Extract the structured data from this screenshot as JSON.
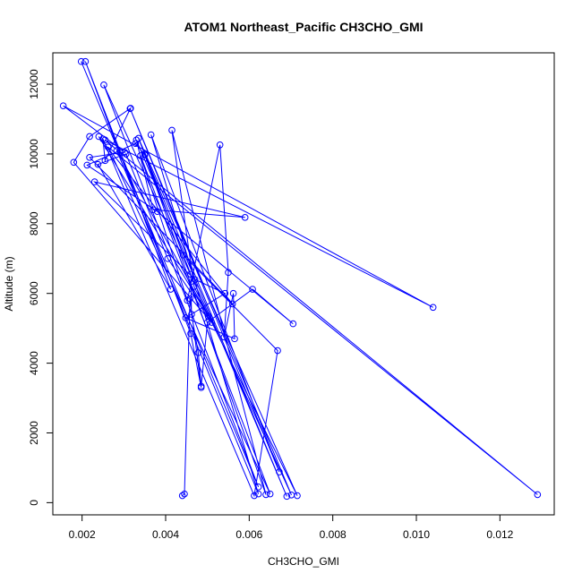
{
  "chart_data": {
    "type": "line",
    "title": "ATOM1 Northeast_Pacific CH3CHO_GMI",
    "xlabel": "CH3CHO_GMI",
    "ylabel": "Altitude (m)",
    "xlim": [
      0.0013,
      0.0133
    ],
    "ylim": [
      -350,
      12900
    ],
    "x_ticks": [
      0.002,
      0.004,
      0.006,
      0.008,
      0.01,
      0.012
    ],
    "x_tick_labels": [
      "0.002",
      "0.004",
      "0.006",
      "0.008",
      "0.010",
      "0.012"
    ],
    "y_ticks": [
      0,
      2000,
      4000,
      6000,
      8000,
      10000,
      12000
    ],
    "y_tick_labels": [
      "0",
      "2000",
      "4000",
      "6000",
      "8000",
      "10000",
      "12000"
    ],
    "grid": false,
    "legend": "none",
    "series": [
      {
        "color": "#0000ff",
        "marker": "open-circle",
        "x": [
          0.00198,
          0.00622,
          0.00252,
          0.00701,
          0.00315,
          0.00672,
          0.00365,
          0.00622,
          0.00283,
          0.00502,
          0.0024,
          0.0056,
          0.00218,
          0.00302,
          0.00155,
          0.0104,
          0.00255,
          0.0129,
          0.00262,
          0.0065,
          0.0034,
          0.00452,
          0.0053,
          0.0055,
          0.0054,
          0.00562,
          0.00565,
          0.00448,
          0.00542,
          0.0047,
          0.0023,
          0.0059,
          0.0037,
          0.0033,
          0.0069,
          0.0035,
          0.0046,
          0.00462,
          0.00478,
          0.00485,
          0.005,
          0.00608,
          0.00705,
          0.0038,
          0.00212,
          0.00328,
          0.0035,
          0.0064,
          0.00415,
          0.00468,
          0.00715,
          0.00335,
          0.00442,
          0.00668,
          0.00612,
          0.0025,
          0.00255,
          0.00316,
          0.00218,
          0.0018,
          0.0051,
          0.00405,
          0.00305,
          0.00238,
          0.00412,
          0.00208,
          0.0046,
          0.00485,
          0.00458,
          0.00445,
          0.0044
        ],
        "y": [
          12650,
          450,
          11980,
          220,
          11300,
          880,
          10550,
          250,
          10100,
          5350,
          10500,
          5700,
          9900,
          10050,
          11380,
          5600,
          10400,
          230,
          10200,
          250,
          9950,
          5800,
          10260,
          6600,
          4750,
          6000,
          4700,
          5300,
          6000,
          6400,
          9200,
          8180,
          8400,
          10400,
          180,
          10000,
          6550,
          5400,
          4300,
          3340,
          5170,
          6120,
          5130,
          8350,
          9680,
          10300,
          9970,
          230,
          10680,
          6200,
          200,
          10450,
          7100,
          4360,
          200,
          10430,
          9810,
          11310,
          10500,
          9760,
          5170,
          7000,
          10000,
          9700,
          6120,
          12650,
          4850,
          3300,
          5850,
          250,
          200
        ]
      }
    ]
  }
}
